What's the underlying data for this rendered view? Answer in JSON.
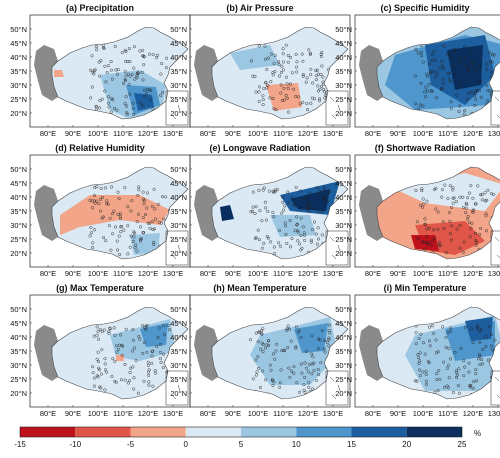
{
  "panels": [
    {
      "title": "(a) Precipitation"
    },
    {
      "title": "(b) Air Pressure"
    },
    {
      "title": "(c) Specific Humidity"
    },
    {
      "title": "(d) Relative Humidity"
    },
    {
      "title": "(e) Longwave Radiation"
    },
    {
      "title": "(f) Shortwave Radiation"
    },
    {
      "title": "(g) Max Temperature"
    },
    {
      "title": "(h) Mean Temperature"
    },
    {
      "title": "(i) Min Temperature"
    }
  ],
  "lat_labels": [
    "50°N",
    "45°N",
    "40°N",
    "35°N",
    "30°N",
    "25°N",
    "20°N"
  ],
  "lon_labels": [
    "80°E",
    "90°E",
    "100°E",
    "110°E",
    "120°E",
    "130°E"
  ],
  "colorbar": {
    "ticks": [
      "-15",
      "-10",
      "-5",
      "0",
      "5",
      "10",
      "15",
      "20",
      "25"
    ],
    "unit": "%",
    "colors": [
      "#c0121d",
      "#e0574a",
      "#f2a589",
      "#dbe9f5",
      "#9cc7e3",
      "#4f96cc",
      "#1d5e9f",
      "#0a2f5e"
    ]
  },
  "colors": {
    "grey_region": "#8a8a8a",
    "border": "#444444"
  }
}
